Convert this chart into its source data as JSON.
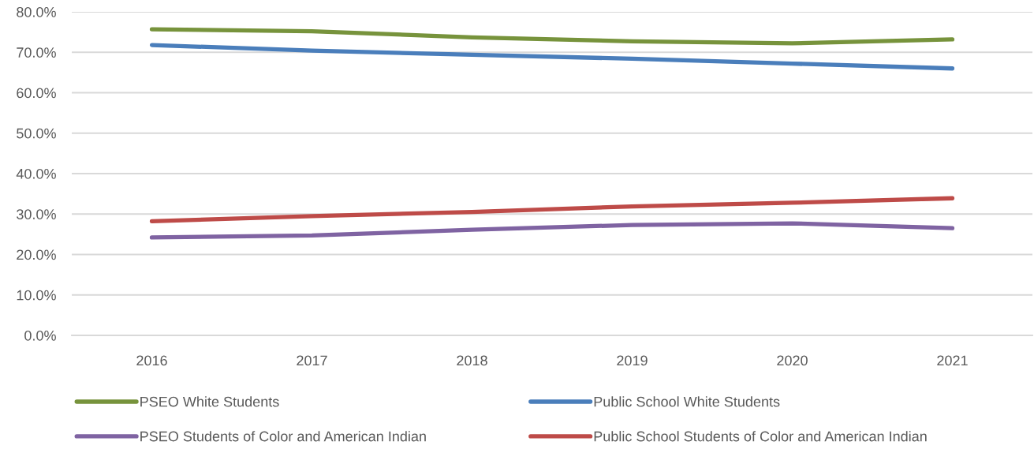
{
  "chart_data": {
    "type": "line",
    "categories": [
      "2016",
      "2017",
      "2018",
      "2019",
      "2020",
      "2021"
    ],
    "series": [
      {
        "name": "PSEO White Students",
        "color": "#77933c",
        "values": [
          75.7,
          75.2,
          73.7,
          72.7,
          72.2,
          73.2
        ]
      },
      {
        "name": "Public School White Students",
        "color": "#4a7ebb",
        "values": [
          71.8,
          70.4,
          69.4,
          68.4,
          67.2,
          66.0
        ]
      },
      {
        "name": "PSEO Students of Color and American Indian",
        "color": "#7f63a2",
        "values": [
          24.2,
          24.7,
          26.1,
          27.3,
          27.7,
          26.5
        ]
      },
      {
        "name": "Public School Students of Color and American Indian",
        "color": "#be4b48",
        "values": [
          28.2,
          29.5,
          30.5,
          31.9,
          32.8,
          33.9
        ]
      }
    ],
    "ylim": [
      0,
      80
    ],
    "yticks": [
      {
        "value": 0,
        "label": "0.0%"
      },
      {
        "value": 10,
        "label": "10.0%"
      },
      {
        "value": 20,
        "label": "20.0%"
      },
      {
        "value": 30,
        "label": "30.0%"
      },
      {
        "value": 40,
        "label": "40.0%"
      },
      {
        "value": 50,
        "label": "50.0%"
      },
      {
        "value": 60,
        "label": "60.0%"
      },
      {
        "value": 70,
        "label": "70.0%"
      },
      {
        "value": 80,
        "label": "80.0%"
      }
    ],
    "grid": "y",
    "legend": "bottom"
  }
}
